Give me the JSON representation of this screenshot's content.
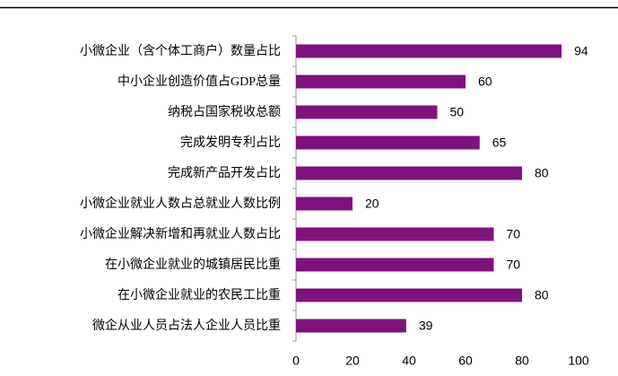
{
  "chart_data": {
    "type": "bar",
    "orientation": "horizontal",
    "categories": [
      "小微企业（含个体工商户）数量占比",
      "中小企业创造价值占GDP总量",
      "纳税占国家税收总额",
      "完成发明专利占比",
      "完成新产品开发占比",
      "小微企业就业人数占总就业人数比例",
      "小微企业解决新增和再就业人数占比",
      "在小微企业就业的城镇居民比重",
      "在小微企业就业的农民工比重",
      "微企从业人员占法人企业人员比重"
    ],
    "values": [
      94,
      60,
      50,
      65,
      80,
      20,
      70,
      70,
      80,
      39
    ],
    "color": "#7f127f",
    "xlim": [
      0,
      100
    ],
    "xticks": [
      0,
      20,
      40,
      60,
      80,
      100
    ],
    "grid": false
  }
}
